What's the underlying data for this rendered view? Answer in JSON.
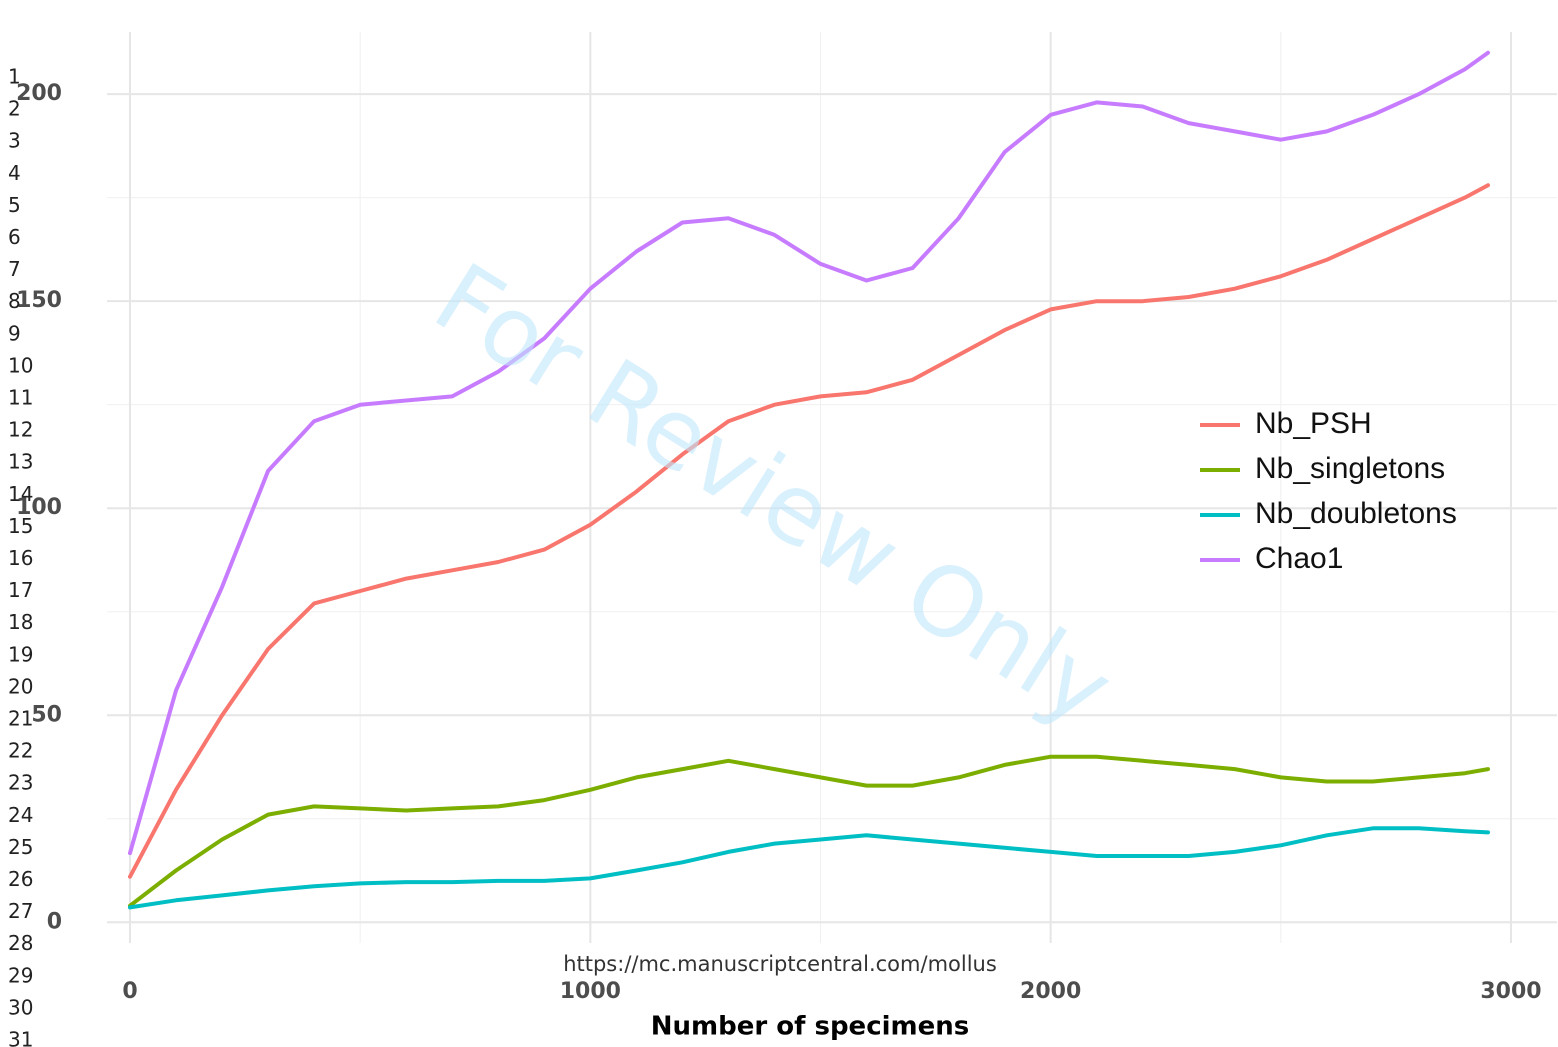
{
  "chart_data": {
    "type": "line",
    "x_label": "Number of specimens",
    "x": [
      0,
      100,
      200,
      300,
      400,
      500,
      600,
      700,
      800,
      900,
      1000,
      1100,
      1200,
      1300,
      1400,
      1500,
      1600,
      1700,
      1800,
      1900,
      2000,
      2100,
      2200,
      2300,
      2400,
      2500,
      2600,
      2700,
      2800,
      2900,
      2950
    ],
    "series": [
      {
        "name": "Nb_PSH",
        "color": "#F8766D",
        "values": [
          11,
          32,
          50,
          66,
          77,
          80,
          83,
          85,
          87,
          90,
          96,
          104,
          113,
          121,
          125,
          127,
          128,
          131,
          137,
          143,
          148,
          150,
          150,
          151,
          153,
          156,
          160,
          165,
          170,
          175,
          178
        ]
      },
      {
        "name": "Nb_singletons",
        "color": "#7CAE00",
        "values": [
          4,
          12.5,
          20,
          26,
          28,
          27.5,
          27,
          27.5,
          28,
          29.5,
          32,
          35,
          37,
          39,
          37,
          35,
          33,
          33,
          35,
          38,
          40,
          40,
          39,
          38,
          37,
          35,
          34,
          34,
          35,
          36,
          37
        ]
      },
      {
        "name": "Nb_doubletons",
        "color": "#00BFC4",
        "values": [
          3.6,
          5.3,
          6.5,
          7.7,
          8.7,
          9.4,
          9.7,
          9.7,
          10,
          10,
          10.6,
          12.5,
          14.5,
          17,
          19,
          20,
          21,
          20,
          19,
          18,
          17,
          16,
          16,
          16,
          17,
          18.6,
          21,
          22.7,
          22.7,
          22,
          21.7
        ]
      },
      {
        "name": "Chao1",
        "color": "#C77CFF",
        "values": [
          16.7,
          56,
          81,
          109,
          121,
          125,
          126,
          127,
          133,
          141,
          153,
          162,
          169,
          170,
          166,
          159,
          155,
          158,
          170,
          186,
          195,
          198,
          197,
          193,
          191,
          189,
          191,
          195,
          200,
          206,
          210
        ]
      }
    ],
    "xlim": [
      -50,
      3100
    ],
    "ylim": [
      -5,
      215
    ],
    "xticks": [
      0,
      1000,
      2000,
      3000
    ],
    "yticks": [
      0,
      50,
      100,
      150,
      200
    ],
    "xminor": [
      500,
      1500,
      2500
    ],
    "yminor": [
      25,
      75,
      125,
      175
    ],
    "grid": true,
    "legend": "right",
    "line_numbers": [
      "1",
      "2",
      "3",
      "4",
      "5",
      "6",
      "7",
      "8",
      "9",
      "10",
      "11",
      "12",
      "13",
      "14",
      "15",
      "16",
      "17",
      "18",
      "19",
      "20",
      "21",
      "22",
      "23",
      "24",
      "25",
      "26",
      "27",
      "28",
      "29",
      "30",
      "31"
    ],
    "watermark": "For Review Only",
    "footer_url": "https://mc.manuscriptcentral.com/mollus"
  }
}
